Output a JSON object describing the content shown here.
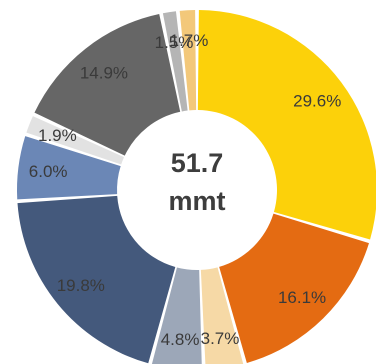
{
  "chart_data": {
    "type": "pie",
    "donut": true,
    "center_label": {
      "line1": "51.7",
      "line2": "mmt"
    },
    "slices": [
      {
        "label": "29.6%",
        "value": 29.6,
        "color": "#fcd10a"
      },
      {
        "label": "16.1%",
        "value": 16.1,
        "color": "#e46b12"
      },
      {
        "label": "3.7%",
        "value": 3.7,
        "color": "#f6d9a6"
      },
      {
        "label": "4.8%",
        "value": 4.8,
        "color": "#9ca7b8"
      },
      {
        "label": "19.8%",
        "value": 19.8,
        "color": "#44597c"
      },
      {
        "label": "6.0%",
        "value": 6.0,
        "color": "#6b87b6"
      },
      {
        "label": "1.9%",
        "value": 1.9,
        "color": "#e2e2e2"
      },
      {
        "label": "14.9%",
        "value": 14.9,
        "color": "#666666"
      },
      {
        "label": "1.5%",
        "value": 1.5,
        "color": "#b5b5b5"
      },
      {
        "label": "1.7%",
        "value": 1.7,
        "color": "#f3c87a"
      }
    ]
  }
}
